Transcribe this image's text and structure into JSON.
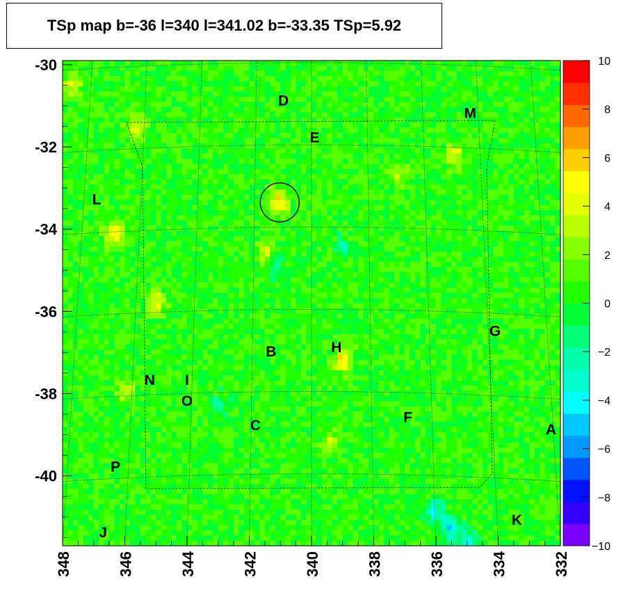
{
  "title": "TSp map b=-36 l=340 l=341.02 b=-33.35 TSp=5.92",
  "chart_data": {
    "type": "heatmap",
    "title": "TSp map b=-36 l=340 l=341.02 b=-33.35 TSp=5.92",
    "xlabel": "",
    "ylabel": "",
    "xlim": [
      348,
      332
    ],
    "ylim": [
      -41.7,
      -29.9
    ],
    "x_ticks": [
      "348",
      "346",
      "344",
      "342",
      "340",
      "338",
      "336",
      "334",
      "332"
    ],
    "y_ticks": [
      "-30",
      "-32",
      "-34",
      "-36",
      "-38",
      "-40"
    ],
    "zlim": [
      -10,
      10
    ],
    "z_ticks": [
      "10",
      "8",
      "6",
      "4",
      "2",
      "0",
      "−2",
      "−4",
      "−6",
      "−8",
      "−10"
    ],
    "palette": [
      "#7a00ff",
      "#3300ff",
      "#0011ff",
      "#0055ff",
      "#0099ff",
      "#00c8ff",
      "#00ffff",
      "#00ffd0",
      "#00ffaa",
      "#00ff77",
      "#00ff33",
      "#22ff00",
      "#55ff00",
      "#88ff00",
      "#b8ff00",
      "#e6ff00",
      "#ffff00",
      "#ffd000",
      "#ffa000",
      "#ff6a00",
      "#ff3000",
      "#ff0000"
    ],
    "background_value": 0.5,
    "hotspots": [
      {
        "l": 341.02,
        "b": -33.35,
        "ts": 5.92
      },
      {
        "l": 346.3,
        "b": -34.1,
        "ts": 6.5
      },
      {
        "l": 339.0,
        "b": -37.2,
        "ts": 6.0
      },
      {
        "l": 347.7,
        "b": -30.5,
        "ts": 4.5
      },
      {
        "l": 345.6,
        "b": -31.5,
        "ts": 4.2
      },
      {
        "l": 345.0,
        "b": -35.8,
        "ts": 4.5
      },
      {
        "l": 341.5,
        "b": -34.6,
        "ts": 3.5
      },
      {
        "l": 335.4,
        "b": -32.2,
        "ts": 4.0
      },
      {
        "l": 337.2,
        "b": -32.6,
        "ts": 3.5
      },
      {
        "l": 339.4,
        "b": -39.2,
        "ts": 3.0
      },
      {
        "l": 346.0,
        "b": -37.9,
        "ts": 3.0
      }
    ],
    "coldspots": [
      {
        "l": 335.5,
        "b": -41.3,
        "ts": -4.5
      },
      {
        "l": 336.0,
        "b": -40.9,
        "ts": -3.5
      },
      {
        "l": 334.9,
        "b": -41.6,
        "ts": -4.0
      },
      {
        "l": 343.0,
        "b": -38.3,
        "ts": -2.0
      },
      {
        "l": 341.2,
        "b": -34.9,
        "ts": -2.0
      },
      {
        "l": 339.0,
        "b": -34.5,
        "ts": -2.0
      }
    ],
    "circle": {
      "l": 341.02,
      "b": -33.35,
      "radius_deg": 0.5
    },
    "sources": [
      {
        "label": "A",
        "l": 332.3,
        "b": -38.9
      },
      {
        "label": "B",
        "l": 341.3,
        "b": -37.0
      },
      {
        "label": "C",
        "l": 341.8,
        "b": -38.8
      },
      {
        "label": "D",
        "l": 340.9,
        "b": -30.9
      },
      {
        "label": "E",
        "l": 339.9,
        "b": -31.8
      },
      {
        "label": "F",
        "l": 336.9,
        "b": -38.6
      },
      {
        "label": "G",
        "l": 334.1,
        "b": -36.5
      },
      {
        "label": "H",
        "l": 339.2,
        "b": -36.9
      },
      {
        "label": "I",
        "l": 344.0,
        "b": -37.7
      },
      {
        "label": "J",
        "l": 346.7,
        "b": -41.4
      },
      {
        "label": "K",
        "l": 333.4,
        "b": -41.1
      },
      {
        "label": "L",
        "l": 346.9,
        "b": -33.3
      },
      {
        "label": "M",
        "l": 334.9,
        "b": -31.2
      },
      {
        "label": "N",
        "l": 345.2,
        "b": -37.7
      },
      {
        "label": "O",
        "l": 344.0,
        "b": -38.2
      },
      {
        "label": "P",
        "l": 346.3,
        "b": -39.8
      }
    ]
  }
}
